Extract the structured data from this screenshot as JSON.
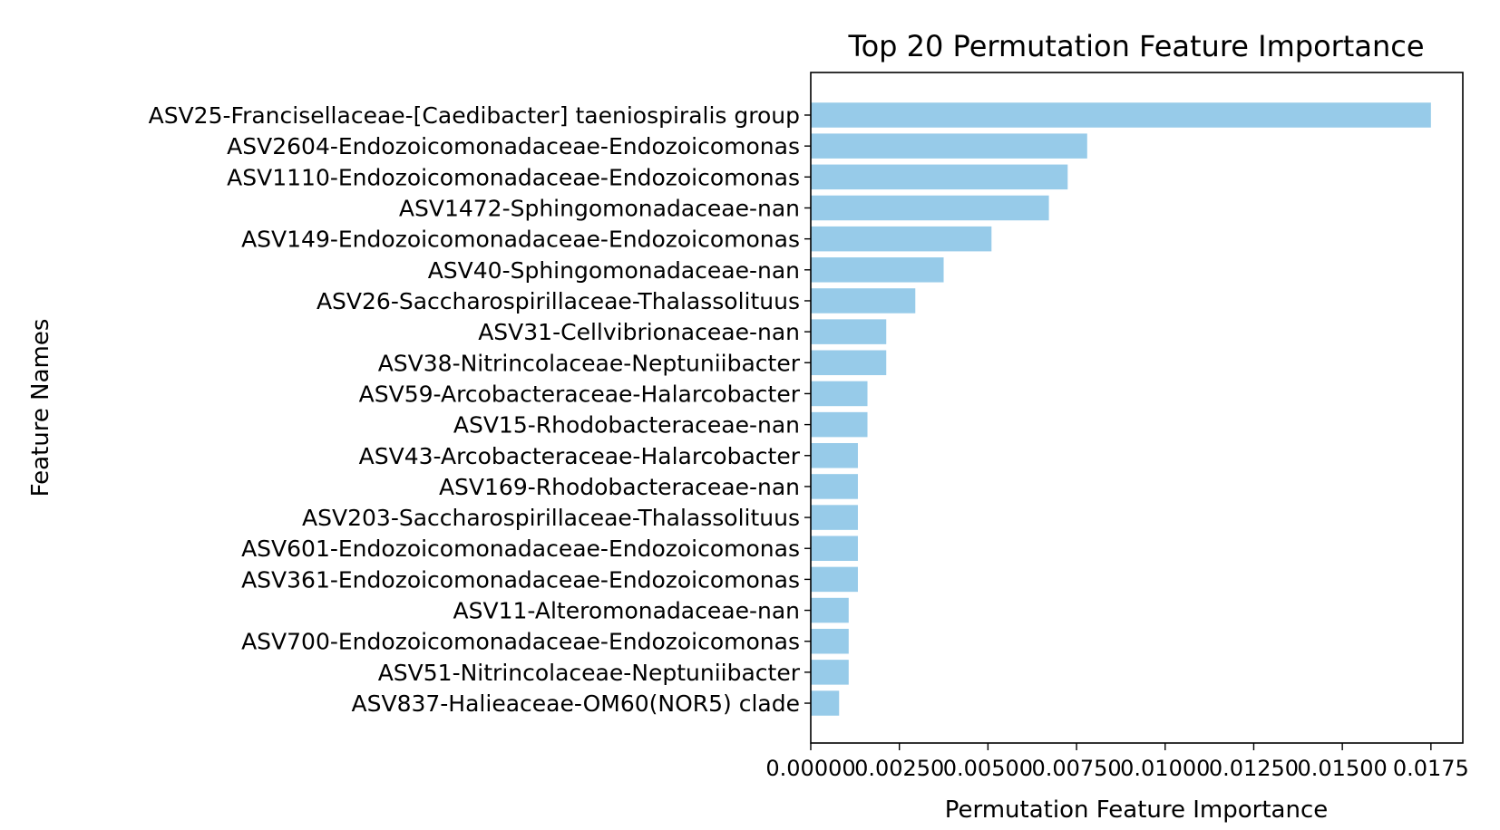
{
  "chart_data": {
    "type": "bar",
    "orientation": "horizontal",
    "title": "Top 20 Permutation Feature Importance",
    "xlabel": "Permutation Feature Importance",
    "ylabel": "Feature Names",
    "xlim": [
      0,
      0.0184
    ],
    "xticks": [
      "0.00000",
      "0.00250",
      "0.00500",
      "0.00750",
      "0.01000",
      "0.01250",
      "0.01500",
      "0.0175"
    ],
    "xtick_values": [
      0,
      0.0025,
      0.005,
      0.0075,
      0.01,
      0.0125,
      0.015,
      0.0175
    ],
    "bar_color": "#97cbe9",
    "grid": false,
    "legend": "none",
    "categories": [
      "ASV25-Francisellaceae-[Caedibacter] taeniospiralis group",
      "ASV2604-Endozoicomonadaceae-Endozoicomonas",
      "ASV1110-Endozoicomonadaceae-Endozoicomonas",
      "ASV1472-Sphingomonadaceae-nan",
      "ASV149-Endozoicomonadaceae-Endozoicomonas",
      "ASV40-Sphingomonadaceae-nan",
      "ASV26-Saccharospirillaceae-Thalassolituus",
      "ASV31-Cellvibrionaceae-nan",
      "ASV38-Nitrincolaceae-Neptuniibacter",
      "ASV59-Arcobacteraceae-Halarcobacter",
      "ASV15-Rhodobacteraceae-nan",
      "ASV43-Arcobacteraceae-Halarcobacter",
      "ASV169-Rhodobacteraceae-nan",
      "ASV203-Saccharospirillaceae-Thalassolituus",
      "ASV601-Endozoicomonadaceae-Endozoicomonas",
      "ASV361-Endozoicomonadaceae-Endozoicomonas",
      "ASV11-Alteromonadaceae-nan",
      "ASV700-Endozoicomonadaceae-Endozoicomonas",
      "ASV51-Nitrincolaceae-Neptuniibacter",
      "ASV837-Halieaceae-OM60(NOR5) clade"
    ],
    "values": [
      0.0175,
      0.0078,
      0.00725,
      0.00672,
      0.0051,
      0.00375,
      0.00295,
      0.00213,
      0.00213,
      0.0016,
      0.0016,
      0.00133,
      0.00133,
      0.00133,
      0.00133,
      0.00133,
      0.00107,
      0.00107,
      0.00107,
      0.0008
    ]
  }
}
